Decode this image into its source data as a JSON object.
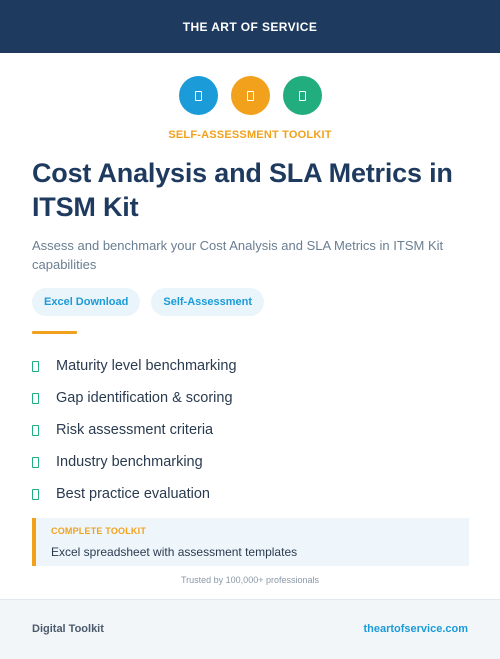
{
  "header": {
    "brand": "THE ART OF SERVICE"
  },
  "icons": [
    {
      "name": "clipboard-icon",
      "color": "#1b9bd8"
    },
    {
      "name": "clipboard-icon",
      "color": "#f2a11d"
    },
    {
      "name": "clipboard-icon",
      "color": "#21ad7e"
    }
  ],
  "eyebrow": "SELF-ASSESSMENT TOOLKIT",
  "title": "Cost Analysis and SLA Metrics in ITSM Kit",
  "subtitle": "Assess and benchmark your Cost Analysis and SLA Metrics in ITSM Kit capabilities",
  "tags": [
    "Excel Download",
    "Self-Assessment"
  ],
  "features": [
    "Maturity level benchmarking",
    "Gap identification & scoring",
    "Risk assessment criteria",
    "Industry benchmarking",
    "Best practice evaluation"
  ],
  "callout": {
    "label": "COMPLETE TOOLKIT",
    "text": "Excel spreadsheet with assessment templates"
  },
  "trusted": "Trusted by 100,000+ professionals",
  "footer": {
    "left": "Digital Toolkit",
    "right": "theartofservice.com"
  },
  "colors": {
    "navy": "#1e3a5f",
    "accent_orange": "#f2a11d",
    "accent_blue": "#1b9bd8",
    "accent_green": "#21ad7e"
  }
}
